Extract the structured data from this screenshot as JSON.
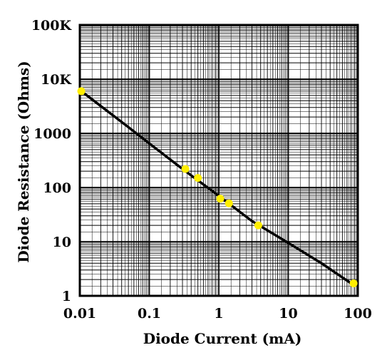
{
  "chart_data": {
    "type": "line",
    "title": "",
    "xlabel": "Diode Current (mA)",
    "ylabel": "Diode Resistance (Ohms)",
    "x_scale": "log",
    "y_scale": "log",
    "xlim": [
      0.01,
      100
    ],
    "ylim": [
      1,
      100000
    ],
    "x_ticks": [
      {
        "value": 0.01,
        "label": "0.01"
      },
      {
        "value": 0.1,
        "label": "0.1"
      },
      {
        "value": 1,
        "label": "1"
      },
      {
        "value": 10,
        "label": "10"
      },
      {
        "value": 100,
        "label": "100"
      }
    ],
    "y_ticks": [
      {
        "value": 1,
        "label": "1"
      },
      {
        "value": 10,
        "label": "10"
      },
      {
        "value": 100,
        "label": "100"
      },
      {
        "value": 1000,
        "label": "1000"
      },
      {
        "value": 10000,
        "label": "10K"
      },
      {
        "value": 100000,
        "label": "100K"
      }
    ],
    "grid": true,
    "line_color": "#000000",
    "marker_color": "#ffee00",
    "series": [
      {
        "values": [
          {
            "x": 0.0105,
            "y": 6000
          },
          {
            "x": 0.05,
            "y": 1300
          },
          {
            "x": 0.1,
            "y": 650
          },
          {
            "x": 0.3,
            "y": 220
          },
          {
            "x": 1,
            "y": 70
          },
          {
            "x": 3,
            "y": 24
          },
          {
            "x": 10,
            "y": 9.5
          },
          {
            "x": 30,
            "y": 4
          },
          {
            "x": 80,
            "y": 1.7
          }
        ],
        "markers": [
          {
            "x": 0.0105,
            "y": 6000
          },
          {
            "x": 0.33,
            "y": 220
          },
          {
            "x": 0.5,
            "y": 150
          },
          {
            "x": 1.05,
            "y": 62
          },
          {
            "x": 1.4,
            "y": 51
          },
          {
            "x": 3.7,
            "y": 20
          },
          {
            "x": 87,
            "y": 1.7
          }
        ]
      }
    ]
  }
}
